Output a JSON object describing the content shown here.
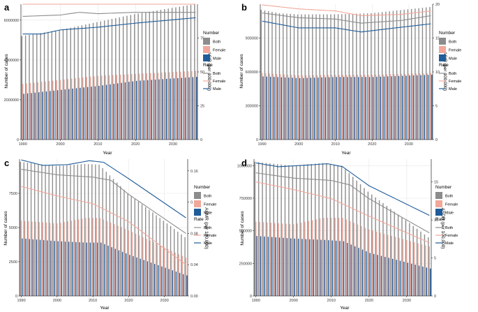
{
  "colors": {
    "both": "#8c8c8c",
    "female": "#f2a79a",
    "male": "#1f5c99",
    "grid": "#e6e6e6",
    "axis": "#000000"
  },
  "chart_data": [
    {
      "panel": "a",
      "type": "bar",
      "xlabel": "Year",
      "ylabel_left": "Number of cases",
      "ylabel_right": "ASIR (per 100,000)",
      "years": {
        "start": 1990,
        "end": 2036
      },
      "x_ticks": [
        "1990",
        "2000",
        "2010",
        "2020",
        "2030"
      ],
      "left_ticks": [
        0,
        2000000,
        4000000,
        6000000
      ],
      "left_tick_labels": [
        "0",
        "2000000",
        "4000000",
        "6000000"
      ],
      "ylim_left": [
        0,
        6800000
      ],
      "right_ticks": [
        0,
        25,
        50,
        75
      ],
      "right_tick_labels": [
        "0",
        "25",
        "50",
        "75"
      ],
      "ylim_right": [
        0,
        100
      ],
      "series_bars": [
        {
          "name": "Both",
          "points": [
            [
              1990,
              5200000
            ],
            [
              2000,
              5500000
            ],
            [
              2010,
              5900000
            ],
            [
              2020,
              6300000
            ],
            [
              2036,
              6800000
            ]
          ]
        },
        {
          "name": "Female",
          "points": [
            [
              1990,
              2800000
            ],
            [
              2000,
              3000000
            ],
            [
              2010,
              3200000
            ],
            [
              2020,
              3300000
            ],
            [
              2036,
              3450000
            ]
          ]
        },
        {
          "name": "Male",
          "points": [
            [
              1990,
              2300000
            ],
            [
              2000,
              2500000
            ],
            [
              2010,
              2700000
            ],
            [
              2020,
              2950000
            ],
            [
              2036,
              3150000
            ]
          ]
        }
      ],
      "series_rate": [
        {
          "name": "Both",
          "points": [
            [
              1990,
              91
            ],
            [
              2000,
              92
            ],
            [
              2005,
              94
            ],
            [
              2010,
              93
            ],
            [
              2020,
              94
            ],
            [
              2036,
              94
            ]
          ]
        },
        {
          "name": "Female",
          "points": [
            [
              1990,
              100
            ],
            [
              2000,
              100
            ],
            [
              2010,
              100
            ],
            [
              2036,
              100
            ]
          ]
        },
        {
          "name": "Male",
          "points": [
            [
              1990,
              78
            ],
            [
              1995,
              78
            ],
            [
              2000,
              81
            ],
            [
              2010,
              83
            ],
            [
              2020,
              86
            ],
            [
              2036,
              90
            ]
          ]
        }
      ]
    },
    {
      "panel": "b",
      "type": "bar",
      "xlabel": "Year",
      "ylabel_left": "Number of cases",
      "ylabel_right": "ASIR (per 100,000)",
      "years": {
        "start": 1990,
        "end": 2036
      },
      "x_ticks": [
        "1990",
        "2000",
        "2010",
        "2020",
        "2030"
      ],
      "left_ticks": [
        0,
        300000,
        600000,
        900000
      ],
      "left_tick_labels": [
        "0",
        "300000",
        "600000",
        "900000"
      ],
      "ylim_left": [
        0,
        1200000
      ],
      "right_ticks": [
        0,
        5,
        10,
        15,
        20
      ],
      "right_tick_labels": [
        "0",
        "5",
        "10",
        "15",
        "20"
      ],
      "ylim_right": [
        0,
        20
      ],
      "series_bars": [
        {
          "name": "Both",
          "points": [
            [
              1990,
              1150000
            ],
            [
              1995,
              1120000
            ],
            [
              2000,
              1110000
            ],
            [
              2010,
              1110000
            ],
            [
              2020,
              1120000
            ],
            [
              2036,
              1175000
            ]
          ]
        },
        {
          "name": "Female",
          "points": [
            [
              1990,
              590000
            ],
            [
              2000,
              570000
            ],
            [
              2010,
              575000
            ],
            [
              2020,
              575000
            ],
            [
              2036,
              590000
            ]
          ]
        },
        {
          "name": "Male",
          "points": [
            [
              1990,
              560000
            ],
            [
              2000,
              545000
            ],
            [
              2010,
              555000
            ],
            [
              2020,
              555000
            ],
            [
              2036,
              575000
            ]
          ]
        }
      ],
      "series_rate": [
        {
          "name": "Both",
          "points": [
            [
              1990,
              18.7
            ],
            [
              2000,
              18.0
            ],
            [
              2010,
              17.8
            ],
            [
              2017,
              17.2
            ],
            [
              2028,
              17.6
            ],
            [
              2036,
              18.3
            ]
          ]
        },
        {
          "name": "Female",
          "points": [
            [
              1990,
              19.9
            ],
            [
              2000,
              19.3
            ],
            [
              2010,
              19.0
            ],
            [
              2017,
              18.3
            ],
            [
              2028,
              18.5
            ],
            [
              2036,
              19.0
            ]
          ]
        },
        {
          "name": "Male",
          "points": [
            [
              1990,
              17.5
            ],
            [
              2000,
              16.5
            ],
            [
              2010,
              16.5
            ],
            [
              2017,
              15.9
            ],
            [
              2028,
              16.6
            ],
            [
              2036,
              17.1
            ]
          ]
        }
      ]
    },
    {
      "panel": "c",
      "type": "bar",
      "xlabel": "Year",
      "ylabel_left": "Number of cases",
      "ylabel_right": "ASMR (per 100,000)",
      "years": {
        "start": 1990,
        "end": 2036
      },
      "x_ticks": [
        "1990",
        "2000",
        "2010",
        "2020",
        "2030"
      ],
      "left_ticks": [
        0,
        2500,
        5000,
        7500
      ],
      "left_tick_labels": [
        "0",
        "2500",
        "5000",
        "7500"
      ],
      "ylim_left": [
        0,
        10000
      ],
      "right_ticks": [
        0,
        0.04,
        0.08,
        0.12,
        0.16
      ],
      "right_tick_labels": [
        "0.00",
        "0.04",
        "0.08",
        "0.12",
        "0.16"
      ],
      "ylim_right": [
        0,
        0.175
      ],
      "series_bars": [
        {
          "name": "Both",
          "points": [
            [
              1990,
              9800
            ],
            [
              2000,
              9500
            ],
            [
              2008,
              9650
            ],
            [
              2012,
              9600
            ],
            [
              2020,
              7500
            ],
            [
              2036,
              4300
            ]
          ]
        },
        {
          "name": "Female",
          "points": [
            [
              1990,
              5500
            ],
            [
              2000,
              5300
            ],
            [
              2008,
              5700
            ],
            [
              2012,
              5700
            ],
            [
              2020,
              4800
            ],
            [
              2036,
              2800
            ]
          ]
        },
        {
          "name": "Male",
          "points": [
            [
              1990,
              4200
            ],
            [
              2000,
              4000
            ],
            [
              2008,
              3900
            ],
            [
              2012,
              3900
            ],
            [
              2020,
              3000
            ],
            [
              2036,
              1500
            ]
          ]
        }
      ],
      "series_rate": [
        {
          "name": "Both",
          "points": [
            [
              1990,
              0.162
            ],
            [
              2000,
              0.155
            ],
            [
              2010,
              0.152
            ],
            [
              2015,
              0.148
            ],
            [
              2020,
              0.13
            ],
            [
              2036,
              0.08
            ]
          ]
        },
        {
          "name": "Female",
          "points": [
            [
              1990,
              0.14
            ],
            [
              2000,
              0.128
            ],
            [
              2010,
              0.118
            ],
            [
              2020,
              0.095
            ],
            [
              2036,
              0.04
            ]
          ]
        },
        {
          "name": "Male",
          "points": [
            [
              1990,
              0.174
            ],
            [
              1996,
              0.167
            ],
            [
              2003,
              0.168
            ],
            [
              2009,
              0.173
            ],
            [
              2013,
              0.171
            ],
            [
              2020,
              0.15
            ],
            [
              2036,
              0.1
            ]
          ]
        }
      ]
    },
    {
      "panel": "d",
      "type": "bar",
      "xlabel": "Year",
      "ylabel_left": "Number of cases",
      "ylabel_right": "ASDR (per 100,000)",
      "years": {
        "start": 1990,
        "end": 2036
      },
      "x_ticks": [
        "1990",
        "2000",
        "2010",
        "2020",
        "2030"
      ],
      "left_ticks": [
        0,
        250000,
        500000,
        750000,
        1000000
      ],
      "left_tick_labels": [
        "0",
        "250000",
        "500000",
        "750000",
        "1000000"
      ],
      "ylim_left": [
        0,
        1050000
      ],
      "right_ticks": [
        0,
        5,
        10,
        15
      ],
      "right_tick_labels": [
        "0",
        "5",
        "10",
        "15"
      ],
      "ylim_right": [
        0,
        18
      ],
      "series_bars": [
        {
          "name": "Both",
          "points": [
            [
              1990,
              1030000
            ],
            [
              2000,
              1000000
            ],
            [
              2008,
              1020000
            ],
            [
              2013,
              1000000
            ],
            [
              2020,
              800000
            ],
            [
              2036,
              450000
            ]
          ]
        },
        {
          "name": "Female",
          "points": [
            [
              1990,
              570000
            ],
            [
              2000,
              550000
            ],
            [
              2008,
              600000
            ],
            [
              2013,
              600000
            ],
            [
              2020,
              510000
            ],
            [
              2036,
              380000
            ]
          ]
        },
        {
          "name": "Male",
          "points": [
            [
              1990,
              460000
            ],
            [
              2000,
              440000
            ],
            [
              2008,
              430000
            ],
            [
              2013,
              420000
            ],
            [
              2020,
              330000
            ],
            [
              2036,
              210000
            ]
          ]
        }
      ],
      "series_rate": [
        {
          "name": "Both",
          "points": [
            [
              1990,
              16.2
            ],
            [
              2000,
              15.5
            ],
            [
              2010,
              15.2
            ],
            [
              2015,
              14.6
            ],
            [
              2020,
              12.8
            ],
            [
              2036,
              8.3
            ]
          ]
        },
        {
          "name": "Female",
          "points": [
            [
              1990,
              15.0
            ],
            [
              2000,
              14.0
            ],
            [
              2010,
              12.8
            ],
            [
              2020,
              10.5
            ],
            [
              2036,
              7.0
            ]
          ]
        },
        {
          "name": "Male",
          "points": [
            [
              1990,
              17.5
            ],
            [
              1996,
              17.0
            ],
            [
              2003,
              17.2
            ],
            [
              2009,
              17.4
            ],
            [
              2013,
              17.0
            ],
            [
              2020,
              14.5
            ],
            [
              2036,
              10.6
            ]
          ]
        }
      ]
    }
  ],
  "legend": {
    "number_title": "Number",
    "rate_title": "Rate",
    "entries": [
      "Both",
      "Female",
      "Male"
    ]
  }
}
